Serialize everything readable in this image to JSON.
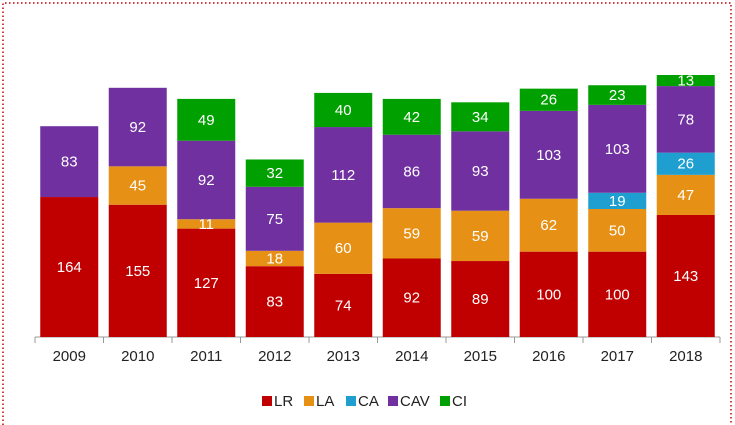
{
  "chart_data": {
    "type": "stacked_bar",
    "categories": [
      "2009",
      "2010",
      "2011",
      "2012",
      "2013",
      "2014",
      "2015",
      "2016",
      "2017",
      "2018"
    ],
    "series": [
      {
        "name": "LR",
        "color": "#c00000",
        "values": [
          164,
          155,
          127,
          83,
          74,
          92,
          89,
          100,
          100,
          143
        ]
      },
      {
        "name": "LA",
        "color": "#e69116",
        "values": [
          null,
          45,
          11,
          18,
          60,
          59,
          59,
          62,
          50,
          47
        ]
      },
      {
        "name": "CA",
        "color": "#1e9fd0",
        "values": [
          null,
          null,
          null,
          null,
          null,
          null,
          null,
          null,
          19,
          26
        ]
      },
      {
        "name": "CAV",
        "color": "#7030a0",
        "values": [
          83,
          92,
          92,
          75,
          112,
          86,
          93,
          103,
          103,
          78
        ]
      },
      {
        "name": "CI",
        "color": "#00a000",
        "values": [
          null,
          null,
          49,
          32,
          40,
          42,
          34,
          26,
          23,
          13
        ]
      }
    ],
    "legend": "bottom"
  }
}
